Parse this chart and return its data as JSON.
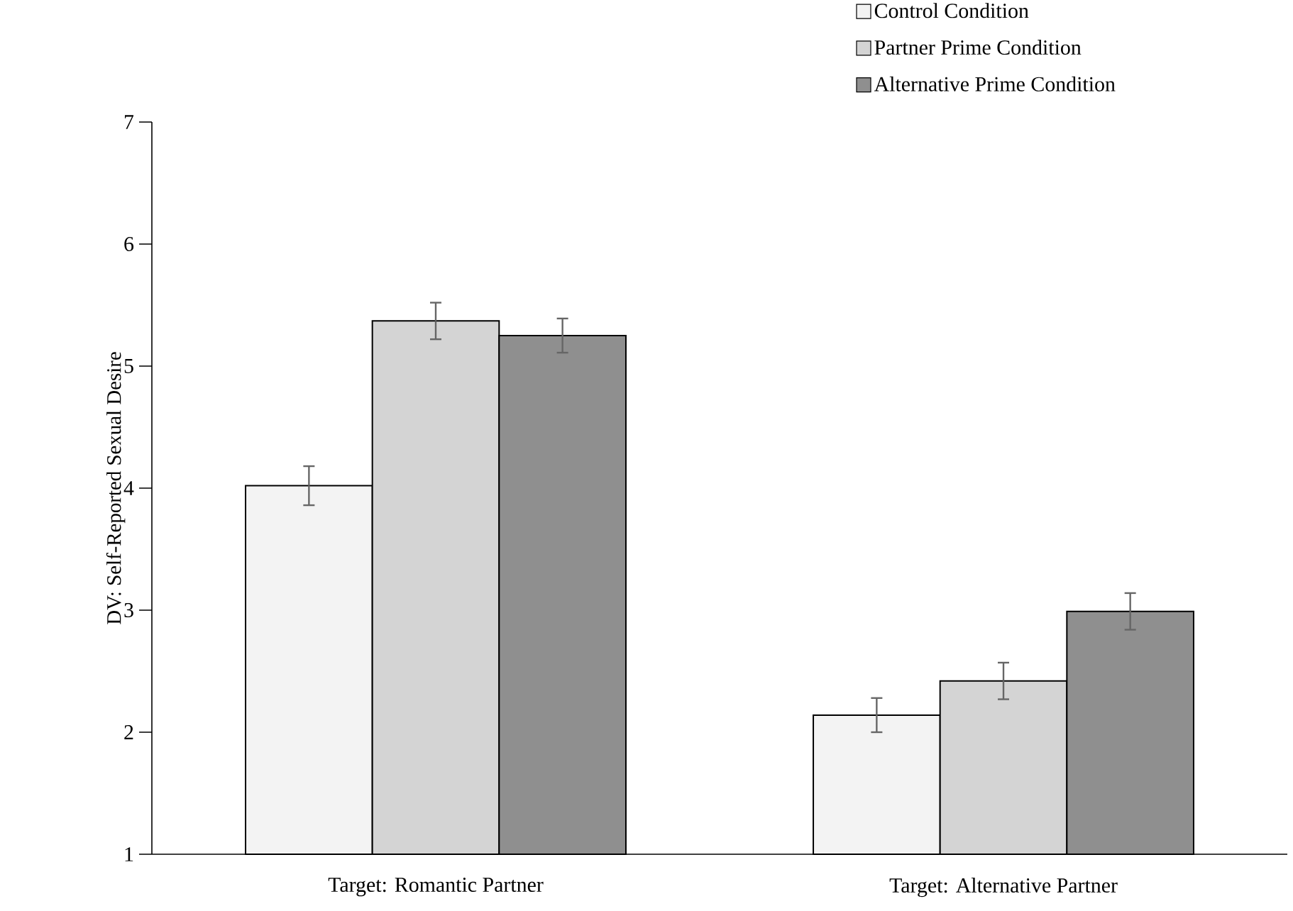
{
  "chart_data": {
    "type": "bar",
    "ylabel": "DV: Self-Reported Sexual Desire",
    "categories": [
      "Target: Romantic Partner",
      "Target: Alternative Partner"
    ],
    "series": [
      {
        "name": "Control Condition",
        "color": "#f3f3f3",
        "values": [
          4.02,
          2.14
        ],
        "errors": [
          0.16,
          0.14
        ]
      },
      {
        "name": "Partner Prime Condition",
        "color": "#d4d4d4",
        "values": [
          5.37,
          2.42
        ],
        "errors": [
          0.15,
          0.15
        ]
      },
      {
        "name": "Alternative Prime Condition",
        "color": "#8f8f8f",
        "values": [
          5.25,
          2.99
        ],
        "errors": [
          0.14,
          0.15
        ]
      }
    ],
    "ylim": [
      1,
      7
    ],
    "yticks": [
      1,
      2,
      3,
      4,
      5,
      6,
      7
    ],
    "legend": "top right"
  }
}
